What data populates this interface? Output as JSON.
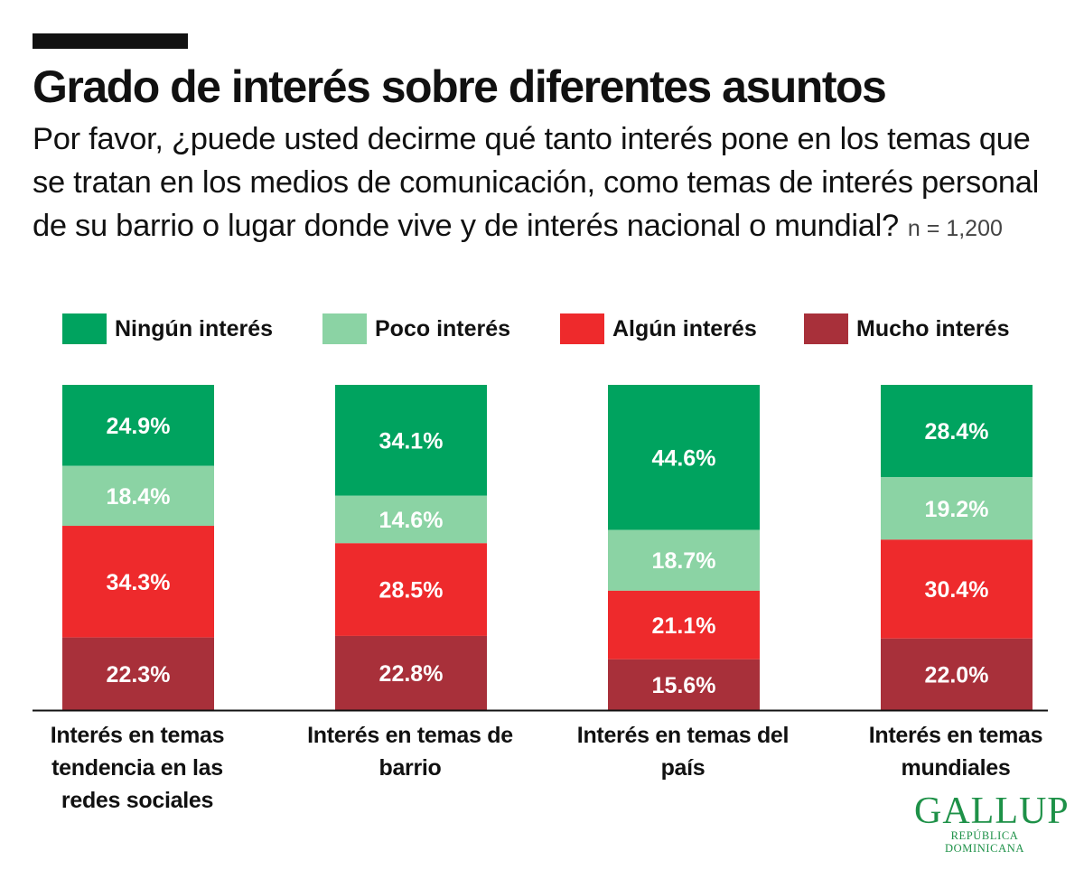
{
  "header": {
    "title": "Grado de interés sobre diferentes asuntos",
    "subtitle": "Por favor, ¿puede usted decirme qué tanto interés pone en los temas que se tratan en los medios de comunicación, como temas de interés personal de su barrio o lugar donde vive y de interés nacional o mundial?",
    "sample": "n = 1,200"
  },
  "chart_data": {
    "type": "bar",
    "stacked": true,
    "categories": [
      "Interés en temas tendencia en las redes sociales",
      "Interés en temas de barrio",
      "Interés en temas del país",
      "Interés en temas mundiales"
    ],
    "series": [
      {
        "name": "Ningún interés",
        "color": "#00a35f",
        "values": [
          24.9,
          34.1,
          44.6,
          28.4
        ],
        "labels": [
          "24.9%",
          "34.1%",
          "44.6%",
          "28.4%"
        ]
      },
      {
        "name": "Poco interés",
        "color": "#8bd3a4",
        "values": [
          18.4,
          14.6,
          18.7,
          19.2
        ],
        "labels": [
          "18.4%",
          "14.6%",
          "18.7%",
          "19.2%"
        ]
      },
      {
        "name": "Algún interés",
        "color": "#ee2a2c",
        "values": [
          34.3,
          28.5,
          21.1,
          30.4
        ],
        "labels": [
          "34.3%",
          "28.5%",
          "21.1%",
          "30.4%"
        ]
      },
      {
        "name": "Mucho interés",
        "color": "#a8303a",
        "values": [
          22.3,
          22.8,
          15.6,
          22.0
        ],
        "labels": [
          "22.3%",
          "22.8%",
          "15.6%",
          "22.0%"
        ]
      }
    ],
    "legend_position": "top",
    "grid": false
  },
  "logo": {
    "main": "GALLUP",
    "sub": "REPÚBLICA DOMINICANA"
  }
}
